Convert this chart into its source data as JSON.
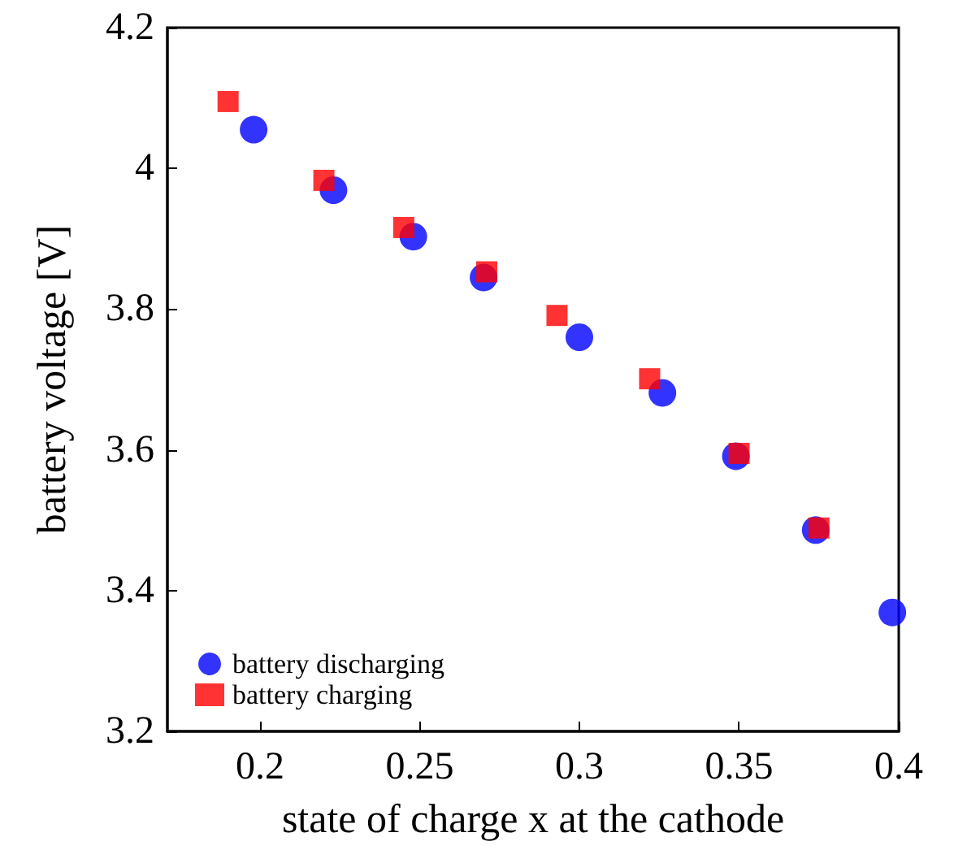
{
  "chart_data": {
    "type": "scatter",
    "xlabel": "state of charge x at the cathode",
    "ylabel": "battery voltage [V]",
    "xlim": [
      0.171,
      0.4
    ],
    "xticks": [
      0.2,
      0.25,
      0.3,
      0.35,
      0.4
    ],
    "ylim": [
      3.2,
      4.2
    ],
    "yticks": [
      3.2,
      3.4,
      3.6,
      3.8,
      4,
      4.2
    ],
    "grid": false,
    "legend": "bottom left",
    "series": [
      {
        "name": "battery discharging",
        "color": "#0000ff",
        "marker": "circle",
        "x": [
          0.198,
          0.223,
          0.248,
          0.27,
          0.3,
          0.326,
          0.349,
          0.374,
          0.398
        ],
        "values": [
          4.055,
          3.969,
          3.903,
          3.845,
          3.76,
          3.681,
          3.591,
          3.486,
          3.369
        ]
      },
      {
        "name": "battery charging",
        "color": "#ff0000",
        "marker": "square",
        "x": [
          0.19,
          0.22,
          0.245,
          0.271,
          0.293,
          0.322,
          0.35,
          0.375
        ],
        "values": [
          4.095,
          3.983,
          3.916,
          3.853,
          3.791,
          3.701,
          3.595,
          3.489
        ]
      }
    ]
  }
}
